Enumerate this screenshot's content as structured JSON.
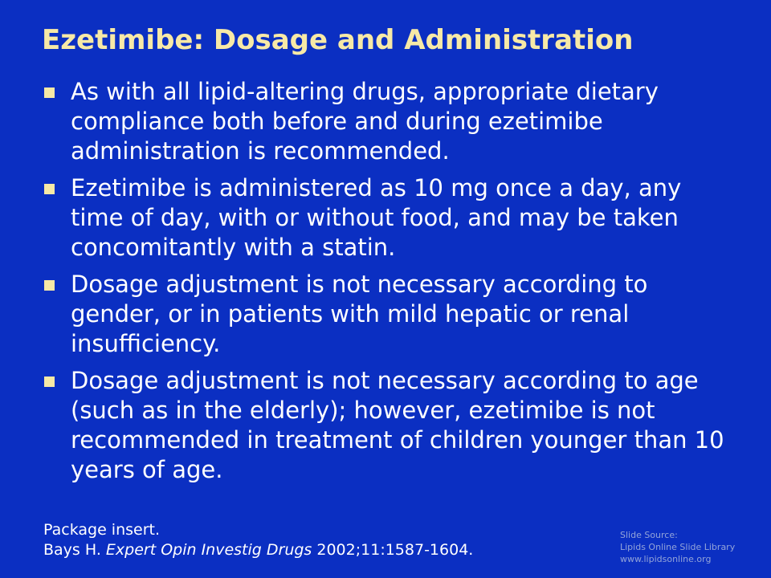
{
  "slide": {
    "title": "Ezetimibe:  Dosage and Administration",
    "bullets": [
      "As with all lipid-altering drugs, appropriate dietary compliance both before and during ezetimibe administration is recommended.",
      "Ezetimibe is administered as 10 mg once a day, any time of day, with or without food, and may be taken concomitantly with a statin.",
      "Dosage adjustment is not necessary according to gender, or in patients with mild hepatic or renal insufficiency.",
      "Dosage adjustment is not necessary according to age (such as in the elderly); however, ezetimibe is not recommended in treatment of children younger than 10 years of age."
    ],
    "references": {
      "line1": "Package insert.",
      "line2_author": "Bays H. ",
      "line2_journal": "Expert Opin Investig Drugs",
      "line2_citation": " 2002;11:1587-1604."
    },
    "source": {
      "label": "Slide Source:",
      "library": "Lipids Online Slide Library",
      "url": "www.lipidsonline.org"
    }
  },
  "colors": {
    "background": "#0b2fc2",
    "title": "#f7e9a6",
    "bullet_marker": "#f7e9a6",
    "body_text": "#ffffff",
    "source_text": "#93a4d9"
  }
}
